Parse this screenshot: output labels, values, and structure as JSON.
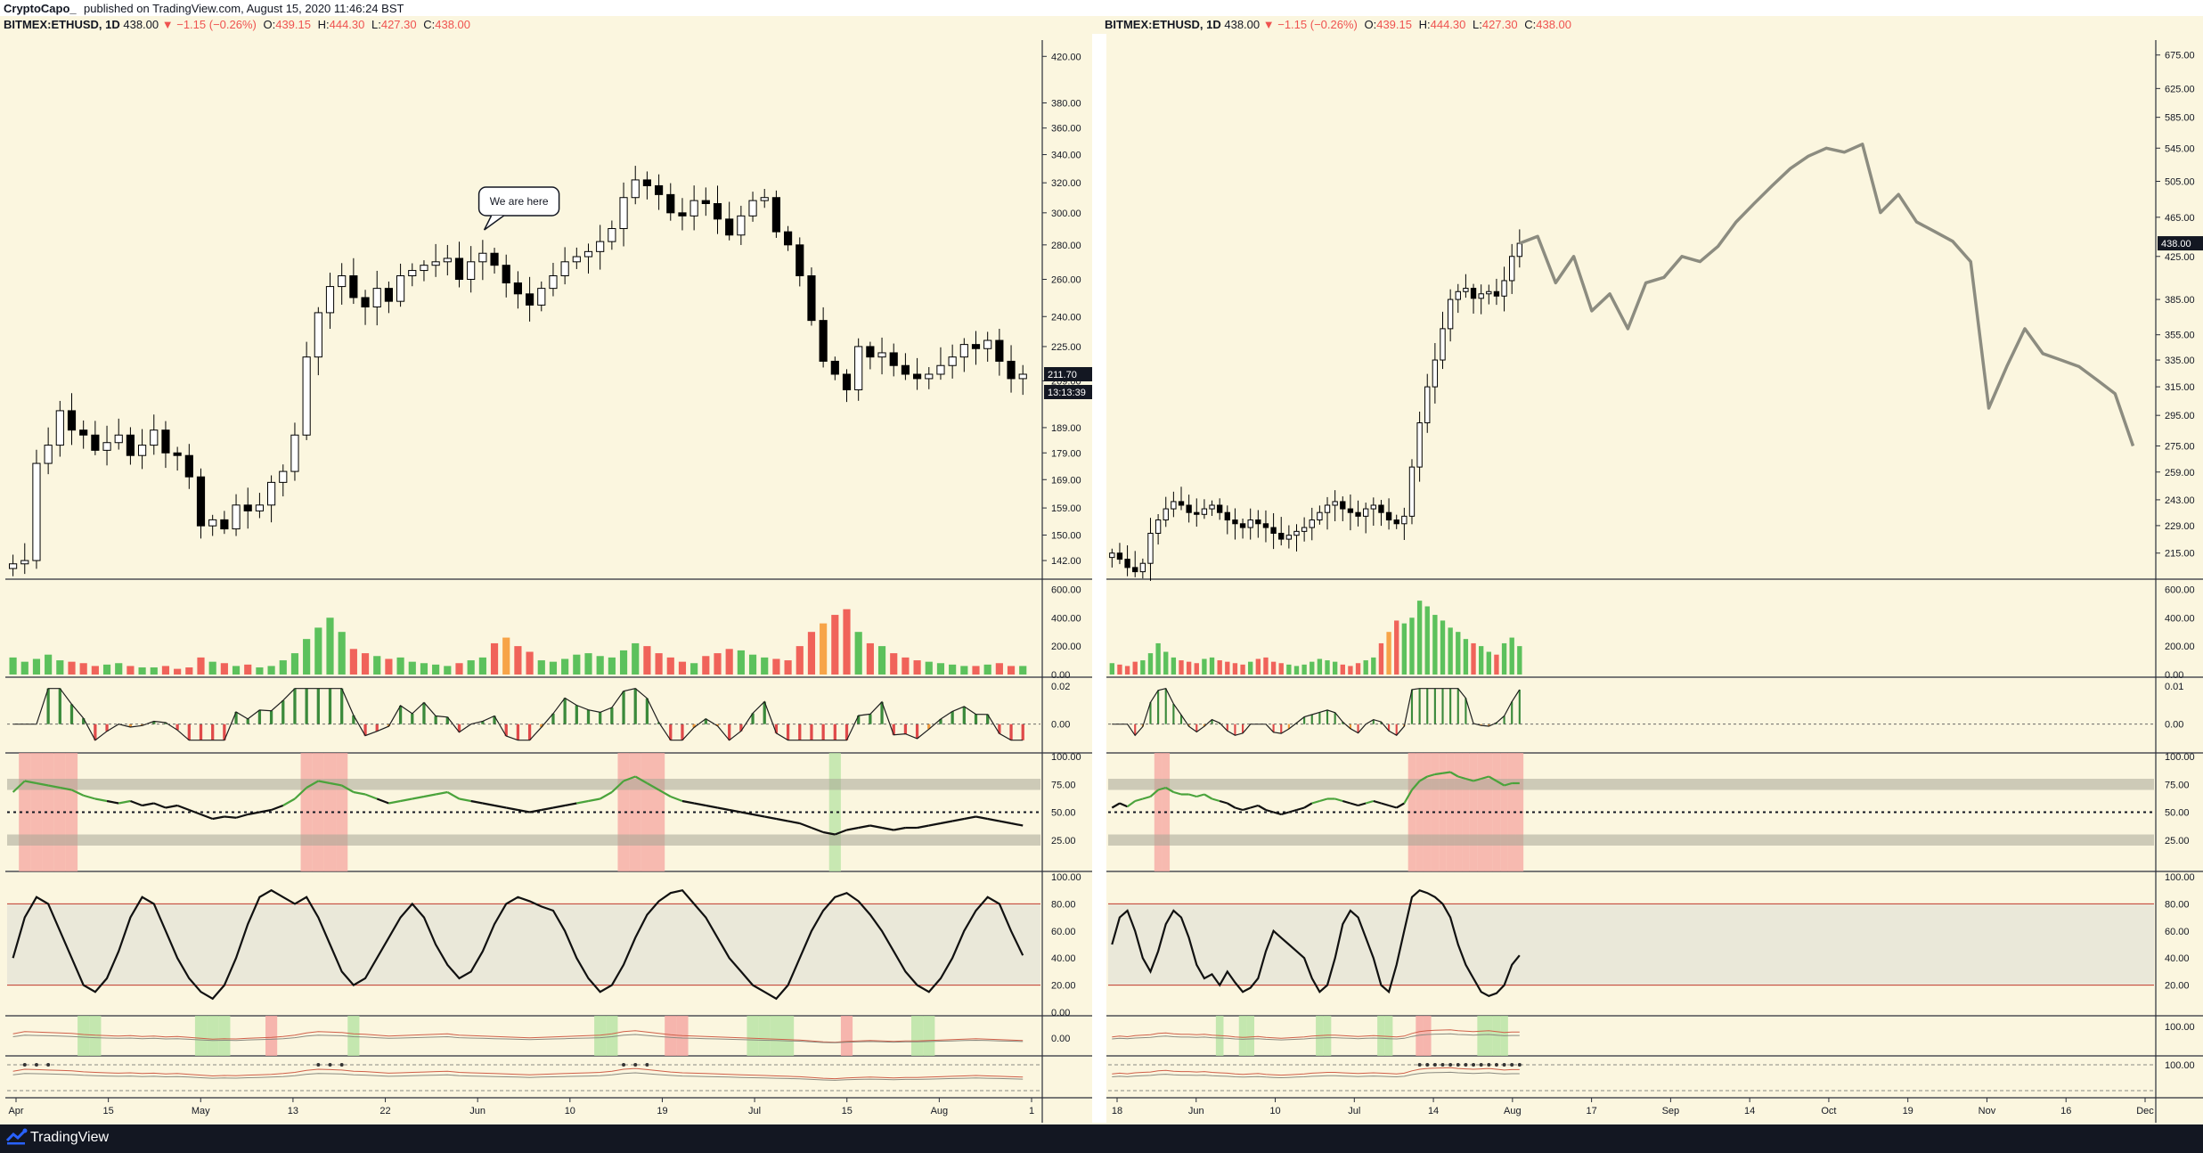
{
  "header": {
    "author": "CryptoCapo_",
    "published": "published on TradingView.com, August 15, 2020 11:46:24 BST"
  },
  "legends": [
    {
      "symbol": "BITMEX:ETHUSD, 1D",
      "last": "438.00",
      "change": "▼ −1.15 (−0.26%)",
      "open": "439.15",
      "high": "444.30",
      "low": "427.30",
      "close": "438.00"
    },
    {
      "symbol": "BITMEX:ETHUSD, 1D",
      "last": "438.00",
      "change": "▼ −1.15 (−0.26%)",
      "open": "439.15",
      "high": "444.30",
      "low": "427.30",
      "close": "438.00"
    }
  ],
  "footer": {
    "brand": "TradingView"
  },
  "colors": {
    "background": "#fbf6df",
    "bull_volume": "#5cc15c",
    "bear_volume": "#f0635a",
    "orange_volume": "#f7a448",
    "candle": "#000000",
    "projection": "#8c8c80",
    "rsi_line": "#4aa33b",
    "overbought_zone": "#f5a5a0",
    "oversold_zone": "#b7e3a3"
  },
  "chart_data": [
    {
      "type": "candlestick",
      "panel": "left",
      "scale": "log",
      "price_axis_ticks": [
        "420.00",
        "380.00",
        "360.00",
        "340.00",
        "320.00",
        "300.00",
        "280.00",
        "260.00",
        "240.00",
        "225.00",
        "209.00",
        "189.00",
        "179.00",
        "169.00",
        "159.00",
        "150.00",
        "142.00"
      ],
      "time_axis_ticks": [
        "Apr",
        "15",
        "May",
        "13",
        "22",
        "Jun",
        "10",
        "19",
        "Jul",
        "15",
        "Aug",
        "1"
      ],
      "price_labels": [
        "211.70",
        "13:13:39"
      ],
      "annotations": [
        "We are here"
      ],
      "close_series": [
        141,
        142,
        175,
        182,
        196,
        188,
        186,
        180,
        183,
        186,
        178,
        182,
        188,
        179,
        178,
        170,
        153,
        155,
        152,
        160,
        158,
        160,
        168,
        172,
        186,
        220,
        242,
        256,
        262,
        250,
        245,
        255,
        248,
        262,
        265,
        268,
        270,
        272,
        260,
        270,
        275,
        268,
        258,
        252,
        246,
        255,
        262,
        270,
        273,
        276,
        282,
        290,
        310,
        322,
        318,
        312,
        300,
        298,
        308,
        306,
        296,
        286,
        298,
        308,
        310,
        288,
        280,
        262,
        238,
        218,
        212,
        205,
        225,
        220,
        222,
        216,
        212,
        210,
        212,
        216,
        220,
        226,
        224,
        228,
        218,
        210,
        212
      ],
      "volume_axis_ticks": [
        "600.00",
        "400.00",
        "200.00",
        "0.00"
      ],
      "volume_series": [
        120,
        90,
        110,
        140,
        100,
        90,
        80,
        60,
        70,
        80,
        60,
        50,
        50,
        60,
        40,
        50,
        120,
        90,
        80,
        60,
        70,
        50,
        60,
        100,
        150,
        250,
        330,
        400,
        300,
        180,
        150,
        130,
        110,
        120,
        90,
        80,
        70,
        60,
        80,
        100,
        120,
        220,
        260,
        200,
        160,
        100,
        90,
        110,
        140,
        150,
        130,
        120,
        170,
        220,
        200,
        150,
        120,
        90,
        80,
        130,
        150,
        180,
        170,
        140,
        120,
        110,
        100,
        200,
        300,
        360,
        420,
        460,
        300,
        220,
        200,
        150,
        120,
        100,
        90,
        80,
        70,
        60,
        60,
        70,
        80,
        60,
        60
      ],
      "macd_axis_ticks": [
        "0.02",
        "0.00"
      ],
      "rsi_axis_ticks": [
        "100.00",
        "75.00",
        "50.00",
        "25.00"
      ],
      "rsi_series": [
        68,
        78,
        76,
        74,
        72,
        70,
        65,
        62,
        60,
        58,
        60,
        56,
        58,
        54,
        56,
        52,
        48,
        44,
        46,
        45,
        48,
        50,
        52,
        56,
        62,
        72,
        78,
        76,
        74,
        68,
        66,
        62,
        58,
        60,
        62,
        64,
        66,
        68,
        62,
        60,
        58,
        56,
        54,
        52,
        50,
        52,
        54,
        56,
        58,
        60,
        62,
        68,
        78,
        82,
        76,
        70,
        64,
        60,
        58,
        56,
        54,
        52,
        50,
        48,
        46,
        44,
        42,
        40,
        36,
        32,
        30,
        34,
        36,
        38,
        36,
        34,
        36,
        36,
        38,
        40,
        42,
        44,
        46,
        44,
        42,
        40,
        38
      ],
      "stoch_axis_ticks": [
        "100.00",
        "80.00",
        "60.00",
        "40.00",
        "20.00",
        "0.00"
      ],
      "stoch_series": [
        40,
        70,
        85,
        80,
        60,
        40,
        20,
        15,
        25,
        45,
        70,
        85,
        80,
        60,
        40,
        25,
        15,
        10,
        20,
        40,
        65,
        85,
        90,
        85,
        80,
        85,
        70,
        50,
        30,
        20,
        25,
        40,
        55,
        70,
        80,
        70,
        50,
        35,
        25,
        30,
        45,
        65,
        80,
        85,
        82,
        78,
        75,
        60,
        40,
        25,
        15,
        20,
        35,
        55,
        72,
        82,
        88,
        90,
        80,
        70,
        55,
        40,
        30,
        20,
        15,
        10,
        20,
        40,
        60,
        75,
        85,
        88,
        82,
        72,
        60,
        45,
        30,
        20,
        15,
        25,
        40,
        60,
        75,
        85,
        80,
        60,
        42
      ],
      "oscillator_axis_ticks": [
        "0.00"
      ]
    },
    {
      "type": "candlestick",
      "panel": "right",
      "scale": "log",
      "price_axis_ticks": [
        "675.00",
        "625.00",
        "585.00",
        "545.00",
        "505.00",
        "465.00",
        "425.00",
        "385.00",
        "355.00",
        "335.00",
        "315.00",
        "295.00",
        "275.00",
        "259.00",
        "243.00",
        "229.00",
        "215.00"
      ],
      "time_axis_ticks": [
        "18",
        "Jun",
        "10",
        "Jul",
        "14",
        "Aug",
        "17",
        "Sep",
        "14",
        "Oct",
        "19",
        "Nov",
        "16",
        "Dec"
      ],
      "price_labels": [
        "438.00"
      ],
      "close_series": [
        215,
        212,
        208,
        206,
        210,
        225,
        232,
        238,
        242,
        240,
        236,
        235,
        238,
        240,
        236,
        232,
        230,
        228,
        232,
        230,
        228,
        225,
        222,
        224,
        226,
        228,
        232,
        236,
        240,
        242,
        238,
        236,
        234,
        238,
        240,
        236,
        232,
        230,
        234,
        262,
        290,
        315,
        335,
        360,
        385,
        392,
        395,
        386,
        390,
        392,
        388,
        402,
        425,
        438
      ],
      "projection_series": [
        438,
        445,
        400,
        425,
        375,
        390,
        360,
        400,
        405,
        425,
        420,
        435,
        460,
        480,
        500,
        520,
        535,
        545,
        540,
        550,
        470,
        490,
        460,
        450,
        440,
        420,
        300,
        330,
        360,
        340,
        335,
        330,
        320,
        310,
        275
      ],
      "volume_axis_ticks": [
        "600.00",
        "400.00",
        "200.00",
        "0.00"
      ],
      "volume_series": [
        80,
        70,
        60,
        90,
        100,
        150,
        220,
        160,
        120,
        100,
        90,
        80,
        110,
        120,
        100,
        90,
        80,
        70,
        90,
        110,
        120,
        90,
        80,
        70,
        60,
        70,
        90,
        110,
        100,
        90,
        70,
        60,
        80,
        100,
        120,
        220,
        300,
        380,
        360,
        400,
        520,
        480,
        420,
        380,
        330,
        300,
        250,
        220,
        200,
        160,
        140,
        220,
        260,
        200
      ],
      "macd_axis_ticks": [
        "0.01",
        "0.00"
      ],
      "rsi_axis_ticks": [
        "100.00",
        "75.00",
        "50.00",
        "25.00"
      ],
      "rsi_series": [
        54,
        58,
        55,
        60,
        62,
        64,
        70,
        72,
        68,
        66,
        66,
        64,
        66,
        62,
        60,
        58,
        54,
        52,
        54,
        56,
        52,
        50,
        48,
        50,
        52,
        54,
        58,
        60,
        62,
        62,
        60,
        58,
        56,
        58,
        60,
        58,
        56,
        54,
        58,
        70,
        78,
        82,
        84,
        85,
        86,
        82,
        80,
        78,
        80,
        82,
        78,
        74,
        76,
        76
      ],
      "stoch_axis_ticks": [
        "100.00",
        "80.00",
        "60.00",
        "40.00",
        "20.00"
      ],
      "stoch_series": [
        50,
        70,
        75,
        60,
        40,
        30,
        45,
        65,
        75,
        70,
        55,
        35,
        25,
        28,
        20,
        30,
        22,
        15,
        18,
        25,
        45,
        60,
        55,
        50,
        45,
        40,
        25,
        15,
        20,
        40,
        65,
        75,
        70,
        55,
        40,
        20,
        15,
        35,
        60,
        85,
        90,
        88,
        85,
        80,
        70,
        50,
        35,
        25,
        15,
        12,
        14,
        20,
        35,
        42
      ],
      "oscillator_axis_ticks": [
        "100.00",
        "100.00"
      ]
    }
  ]
}
